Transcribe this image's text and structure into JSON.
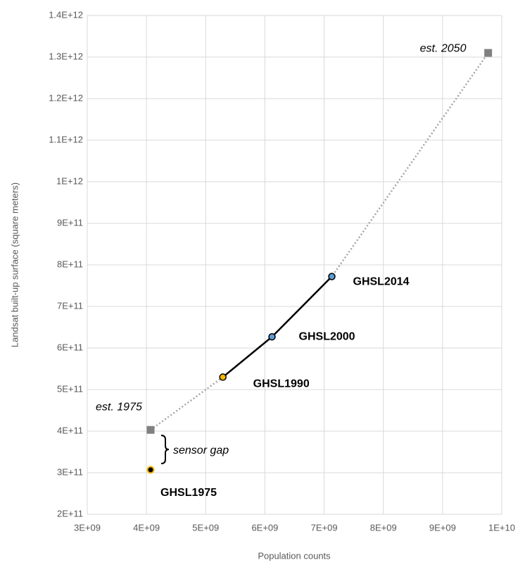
{
  "chart_data": {
    "type": "scatter",
    "xlabel": "Population counts",
    "ylabel": "Landsat built-up surface (square meters)",
    "xlim": [
      3000000000,
      10000000000
    ],
    "ylim": [
      200000000000,
      1400000000000
    ],
    "xticks": [
      {
        "value": 3000000000,
        "label": "3E+09"
      },
      {
        "value": 4000000000,
        "label": "4E+09"
      },
      {
        "value": 5000000000,
        "label": "5E+09"
      },
      {
        "value": 6000000000,
        "label": "6E+09"
      },
      {
        "value": 7000000000,
        "label": "7E+09"
      },
      {
        "value": 8000000000,
        "label": "8E+09"
      },
      {
        "value": 9000000000,
        "label": "9E+09"
      },
      {
        "value": 10000000000,
        "label": "1E+10"
      }
    ],
    "yticks": [
      {
        "value": 200000000000,
        "label": "2E+11"
      },
      {
        "value": 300000000000,
        "label": "3E+11"
      },
      {
        "value": 400000000000,
        "label": "4E+11"
      },
      {
        "value": 500000000000,
        "label": "5E+11"
      },
      {
        "value": 600000000000,
        "label": "6E+11"
      },
      {
        "value": 700000000000,
        "label": "7E+11"
      },
      {
        "value": 800000000000,
        "label": "8E+11"
      },
      {
        "value": 900000000000,
        "label": "9E+11"
      },
      {
        "value": 1000000000000,
        "label": "1E+12"
      },
      {
        "value": 1100000000000,
        "label": "1.1E+12"
      },
      {
        "value": 1200000000000,
        "label": "1.2E+12"
      },
      {
        "value": 1300000000000,
        "label": "1.3E+12"
      },
      {
        "value": 1400000000000,
        "label": "1.4E+12"
      }
    ],
    "grid": true,
    "series": [
      {
        "x": [
          4070000000,
          5290000000,
          6120000000,
          7130000000
        ],
        "values": [
          307000000000,
          530000000000,
          627000000000,
          772000000000
        ],
        "labels": [
          "GHSL1975",
          "GHSL1990",
          "GHSL2000",
          "GHSL2014"
        ],
        "marker_colors": [
          "#f5b800",
          "#f5b800",
          "#5b9bd5",
          "#5b9bd5"
        ]
      },
      {
        "x": [
          4070000000,
          9770000000
        ],
        "values": [
          403000000000,
          1310000000000
        ],
        "labels": [
          "est. 1975",
          "est. 2050"
        ],
        "color": "#808080"
      }
    ],
    "trend_color": "#a6a6a6",
    "fit_color": "#000000",
    "annotations": [
      "sensor gap"
    ]
  }
}
